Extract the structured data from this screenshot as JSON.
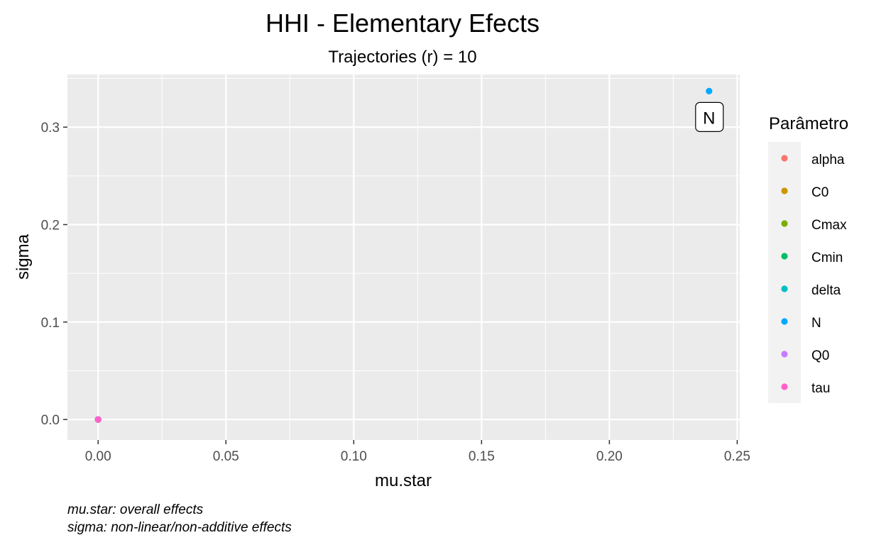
{
  "chart_data": {
    "type": "scatter",
    "title": "HHI - Elementary Efects",
    "subtitle": "Trajectories (r) = 10",
    "xlabel": "mu.star",
    "ylabel": "sigma",
    "xlim": [
      -0.012,
      0.251
    ],
    "ylim": [
      -0.021,
      0.354
    ],
    "x_ticks": [
      0.0,
      0.05,
      0.1,
      0.15,
      0.2,
      0.25
    ],
    "x_tick_labels": [
      "0.00",
      "0.05",
      "0.10",
      "0.15",
      "0.20",
      "0.25"
    ],
    "y_ticks": [
      0.0,
      0.1,
      0.2,
      0.3
    ],
    "y_tick_labels": [
      "0.0",
      "0.1",
      "0.2",
      "0.3"
    ],
    "grid": true,
    "legend": {
      "title": "Parâmetro",
      "position": "right"
    },
    "series": [
      {
        "name": "alpha",
        "color": "#F8766D",
        "points": [
          {
            "x": 0.0,
            "y": 0.0
          }
        ]
      },
      {
        "name": "C0",
        "color": "#CD9600",
        "points": [
          {
            "x": 0.0,
            "y": 0.0
          }
        ]
      },
      {
        "name": "Cmax",
        "color": "#7CAE00",
        "points": [
          {
            "x": 0.0,
            "y": 0.0
          }
        ]
      },
      {
        "name": "Cmin",
        "color": "#00BE67",
        "points": [
          {
            "x": 0.0,
            "y": 0.0
          }
        ]
      },
      {
        "name": "delta",
        "color": "#00BFC4",
        "points": [
          {
            "x": 0.0,
            "y": 0.0
          }
        ]
      },
      {
        "name": "N",
        "color": "#00A9FF",
        "points": [
          {
            "x": 0.239,
            "y": 0.337
          }
        ]
      },
      {
        "name": "Q0",
        "color": "#C77CFF",
        "points": [
          {
            "x": 0.0,
            "y": 0.0
          }
        ]
      },
      {
        "name": "tau",
        "color": "#FF61CC",
        "points": [
          {
            "x": 0.0,
            "y": 0.0
          }
        ]
      }
    ],
    "annotations": [
      {
        "text": "N",
        "x": 0.239,
        "y": 0.337
      }
    ],
    "caption": [
      "mu.star: overall effects",
      "sigma: non-linear/non-additive effects"
    ]
  }
}
